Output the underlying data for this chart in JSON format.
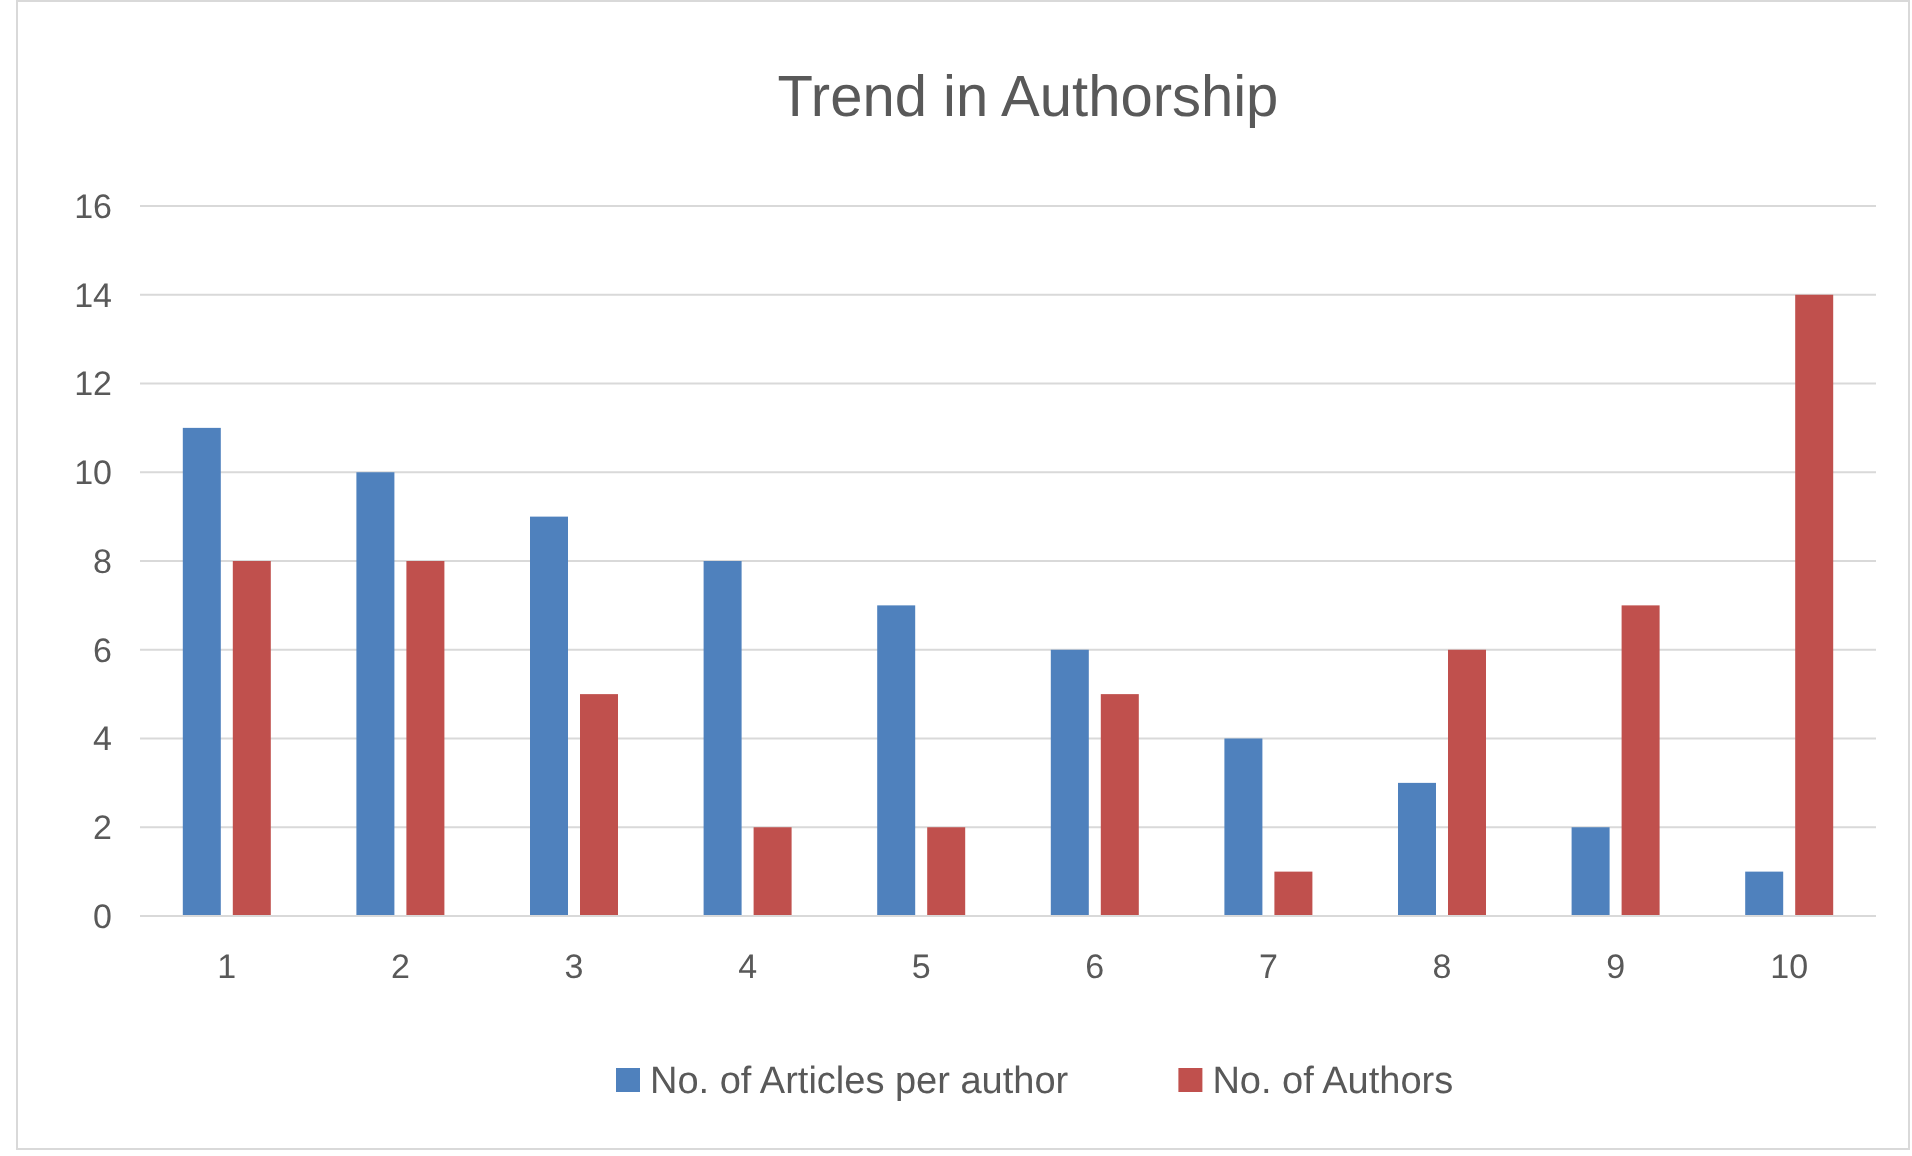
{
  "chart_data": {
    "type": "bar",
    "title": "Trend in Authorship",
    "categories": [
      "1",
      "2",
      "3",
      "4",
      "5",
      "6",
      "7",
      "8",
      "9",
      "10"
    ],
    "series": [
      {
        "name": "No. of Articles per author",
        "color": "#4f81bd",
        "values": [
          11,
          10,
          9,
          8,
          7,
          6,
          4,
          3,
          2,
          1
        ]
      },
      {
        "name": "No. of Authors",
        "color": "#c0504d",
        "values": [
          8,
          8,
          5,
          2,
          2,
          5,
          1,
          6,
          7,
          14
        ]
      }
    ],
    "ylim": [
      0,
      16
    ],
    "yticks": [
      0,
      2,
      4,
      6,
      8,
      10,
      12,
      14,
      16
    ],
    "grid": "y",
    "legend": "bottom"
  }
}
